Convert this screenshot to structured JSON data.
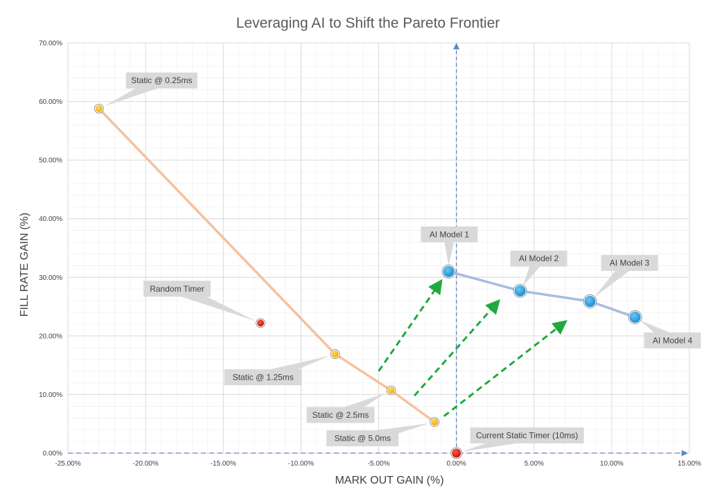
{
  "chart_data": {
    "type": "scatter",
    "title": "Leveraging AI to Shift the Pareto Frontier",
    "xlabel": "MARK OUT GAIN (%)",
    "ylabel": "FILL RATE GAIN (%)",
    "xlim": [
      -25,
      15
    ],
    "ylim": [
      0,
      70
    ],
    "x_ticks": [
      -25,
      -20,
      -15,
      -10,
      -5,
      0,
      5,
      10,
      15
    ],
    "x_tick_labels": [
      "-25.00%",
      "-20.00%",
      "-15.00%",
      "-10.00%",
      "-5.00%",
      "0.00%",
      "5.00%",
      "10.00%",
      "15.00%"
    ],
    "y_ticks": [
      0,
      10,
      20,
      30,
      40,
      50,
      60,
      70
    ],
    "y_tick_labels": [
      "0.00%",
      "10.00%",
      "20.00%",
      "30.00%",
      "40.00%",
      "50.00%",
      "60.00%",
      "70.00%"
    ],
    "grid": true,
    "legend": "none",
    "series": [
      {
        "key": "static",
        "color": "#f4b183",
        "marker_color": "#f5b800",
        "points": [
          {
            "label": "Static @ 0.25ms",
            "x": -23.0,
            "y": 58.8
          },
          {
            "label": "Static @ 1.25ms",
            "x": -7.8,
            "y": 16.9
          },
          {
            "label": "Static @ 2.5ms",
            "x": -4.2,
            "y": 10.7
          },
          {
            "label": "Static @ 5.0ms",
            "x": -1.4,
            "y": 5.3
          }
        ]
      },
      {
        "key": "ai",
        "color": "#8faadc",
        "marker_color": "#29a3e3",
        "points": [
          {
            "label": "AI Model 1",
            "x": -0.5,
            "y": 31.0
          },
          {
            "label": "AI Model 2",
            "x": 4.1,
            "y": 27.7
          },
          {
            "label": "AI Model 3",
            "x": 8.6,
            "y": 25.9
          },
          {
            "label": "AI Model 4",
            "x": 11.5,
            "y": 23.2
          }
        ]
      },
      {
        "key": "random",
        "marker_color": "#e0201c",
        "points": [
          {
            "label": "Random Timer",
            "x": -12.6,
            "y": 22.2
          }
        ]
      },
      {
        "key": "current",
        "marker_color": "#e0201c",
        "points": [
          {
            "label": "Current Static Timer (10ms)",
            "x": 0.0,
            "y": 0.0
          }
        ]
      }
    ],
    "arrows": [
      {
        "from": [
          -5.0,
          14.0
        ],
        "to": [
          -1.0,
          29.3
        ]
      },
      {
        "from": [
          -2.7,
          9.8
        ],
        "to": [
          2.7,
          25.9
        ]
      },
      {
        "from": [
          -0.8,
          6.3
        ],
        "to": [
          7.0,
          22.4
        ]
      }
    ],
    "colors": {
      "arrow": "#1eaa3c",
      "reference_axis": "#4472c4",
      "callout_fill": "#d9d9d9",
      "grid_major": "#d9d9d9",
      "grid_minor": "#efefef"
    }
  }
}
